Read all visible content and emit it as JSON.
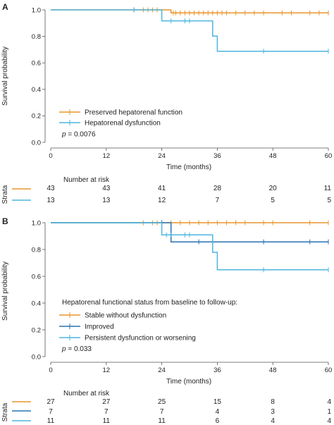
{
  "chart_data": [
    {
      "type": "line",
      "panel_label": "A",
      "xlabel": "Time (months)",
      "ylabel": "Survival probability",
      "xlim": [
        0,
        60
      ],
      "ylim": [
        0,
        1
      ],
      "x_ticks": [
        0,
        12,
        24,
        36,
        48,
        60
      ],
      "y_ticks": [
        "0.0",
        "0.2",
        "0.4",
        "0.6",
        "0.8",
        "1.0"
      ],
      "p_prefix": "p",
      "p_value": " = 0.0076",
      "legend_title": "",
      "series": [
        {
          "name": "Preserved hepatorenal function",
          "color": "#E8962E",
          "steps": [
            [
              0,
              1.0
            ],
            [
              26,
              1.0
            ],
            [
              26,
              0.977
            ],
            [
              60,
              0.977
            ]
          ],
          "censor_times": [
            18,
            20,
            21,
            22,
            23,
            26.5,
            27,
            28,
            29,
            30,
            31,
            32,
            33,
            34,
            35,
            36,
            37,
            38,
            40,
            42,
            44,
            46,
            50,
            52,
            56,
            58,
            60
          ],
          "censor_values": [
            1.0,
            1.0,
            1.0,
            1.0,
            1.0,
            0.977,
            0.977,
            0.977,
            0.977,
            0.977,
            0.977,
            0.977,
            0.977,
            0.977,
            0.977,
            0.977,
            0.977,
            0.977,
            0.977,
            0.977,
            0.977,
            0.977,
            0.977,
            0.977,
            0.977,
            0.977,
            0.977
          ]
        },
        {
          "name": "Hepatorenal dysfunction",
          "color": "#4CB6DE",
          "steps": [
            [
              0,
              1.0
            ],
            [
              24,
              1.0
            ],
            [
              24,
              0.917
            ],
            [
              35,
              0.917
            ],
            [
              35,
              0.802
            ],
            [
              36,
              0.802
            ],
            [
              36,
              0.688
            ],
            [
              60,
              0.688
            ]
          ],
          "censor_times": [
            18,
            26,
            29,
            30,
            46,
            60
          ],
          "censor_values": [
            1.0,
            0.917,
            0.917,
            0.917,
            0.688,
            0.688
          ]
        }
      ],
      "risk_table": {
        "title": "Number at risk",
        "strata_label": "Strata",
        "rows": [
          {
            "color": "#E8962E",
            "values": [
              "43",
              "43",
              "41",
              "28",
              "20",
              "11"
            ]
          },
          {
            "color": "#4CB6DE",
            "values": [
              "13",
              "13",
              "12",
              "7",
              "5",
              "5"
            ]
          }
        ]
      }
    },
    {
      "type": "line",
      "panel_label": "B",
      "xlabel": "Time (months)",
      "ylabel": "Survival probability",
      "xlim": [
        0,
        60
      ],
      "ylim": [
        0,
        1
      ],
      "x_ticks": [
        0,
        12,
        24,
        36,
        48,
        60
      ],
      "y_ticks": [
        "0.0",
        "0.2",
        "0.4",
        "0.6",
        "0.8",
        "1.0"
      ],
      "p_prefix": "p",
      "p_value": " = 0.033",
      "legend_title": "Hepatorenal functional status from baseline to follow-up:",
      "series": [
        {
          "name": "Stable without dysfunction",
          "color": "#E8962E",
          "steps": [
            [
              0,
              1.0
            ],
            [
              60,
              1.0
            ]
          ],
          "censor_times": [
            20,
            22,
            23,
            26,
            28,
            30,
            32,
            34,
            36,
            38,
            40,
            42,
            46,
            48,
            56,
            60
          ],
          "censor_values": [
            1.0,
            1.0,
            1.0,
            1.0,
            1.0,
            1.0,
            1.0,
            1.0,
            1.0,
            1.0,
            1.0,
            1.0,
            1.0,
            1.0,
            1.0,
            1.0
          ]
        },
        {
          "name": "Improved",
          "color": "#2872B4",
          "steps": [
            [
              0,
              1.0
            ],
            [
              26,
              1.0
            ],
            [
              26,
              0.857
            ],
            [
              60,
              0.857
            ]
          ],
          "censor_times": [
            24,
            32,
            46,
            56,
            60
          ],
          "censor_values": [
            1.0,
            0.857,
            0.857,
            0.857,
            0.857
          ]
        },
        {
          "name": "Persistent dysfunction or worsening",
          "color": "#4CB6DE",
          "steps": [
            [
              0,
              1.0
            ],
            [
              24,
              1.0
            ],
            [
              24,
              0.909
            ],
            [
              35,
              0.909
            ],
            [
              35,
              0.779
            ],
            [
              36,
              0.779
            ],
            [
              36,
              0.649
            ],
            [
              60,
              0.649
            ]
          ],
          "censor_times": [
            25,
            26,
            29,
            30,
            46,
            60
          ],
          "censor_values": [
            0.909,
            0.909,
            0.909,
            0.909,
            0.649,
            0.649
          ]
        }
      ],
      "risk_table": {
        "title": "Number at risk",
        "strata_label": "Strata",
        "rows": [
          {
            "color": "#E8962E",
            "values": [
              "27",
              "27",
              "25",
              "15",
              "8",
              "4"
            ]
          },
          {
            "color": "#2872B4",
            "values": [
              "7",
              "7",
              "7",
              "4",
              "3",
              "1"
            ]
          },
          {
            "color": "#4CB6DE",
            "values": [
              "11",
              "11",
              "11",
              "6",
              "4",
              "4"
            ]
          }
        ]
      }
    }
  ]
}
